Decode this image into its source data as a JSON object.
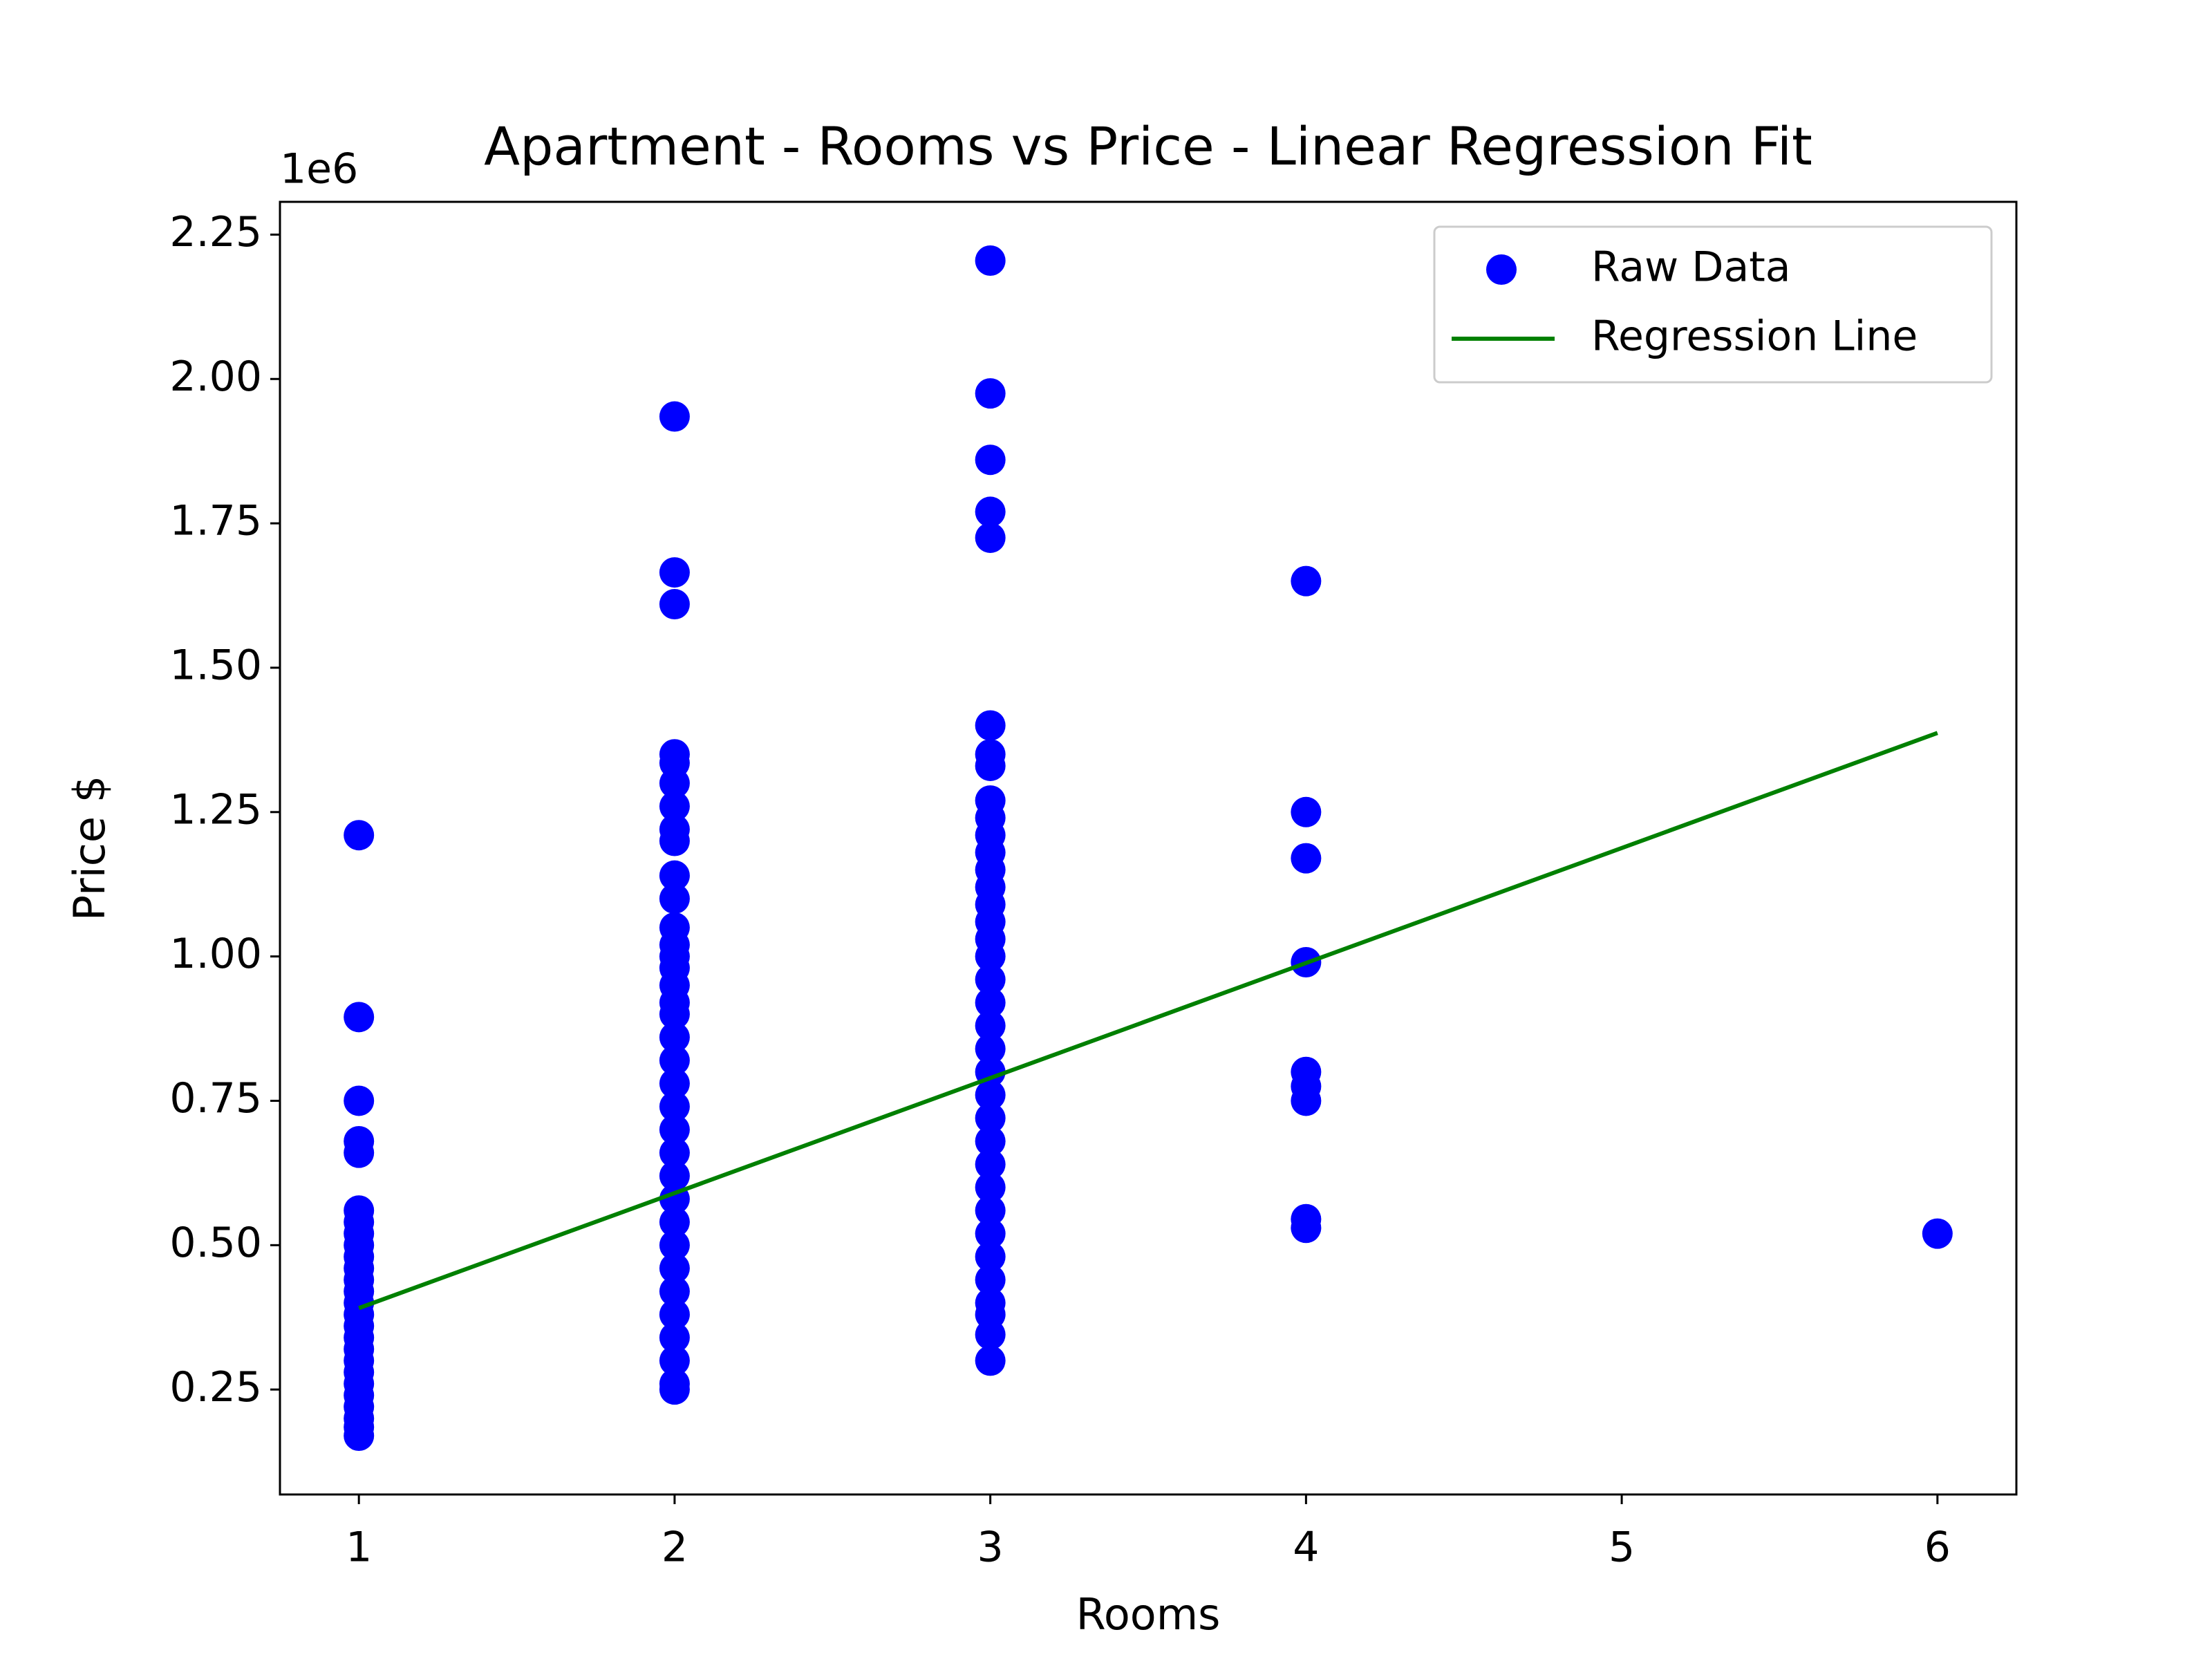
{
  "chart_data": {
    "type": "scatter",
    "title": "Apartment - Rooms vs Price - Linear Regression Fit",
    "x_label": "Rooms",
    "y_label": "Price $",
    "y_offset_label": "1e6",
    "xlim": [
      0.75,
      6.25
    ],
    "ylim": [
      68250,
      2306750
    ],
    "xticks": [
      1,
      2,
      3,
      4,
      5,
      6
    ],
    "yticks": [
      {
        "value": 250000,
        "label": "0.25"
      },
      {
        "value": 500000,
        "label": "0.50"
      },
      {
        "value": 750000,
        "label": "0.75"
      },
      {
        "value": 1000000,
        "label": "1.00"
      },
      {
        "value": 1250000,
        "label": "1.25"
      },
      {
        "value": 1500000,
        "label": "1.50"
      },
      {
        "value": 1750000,
        "label": "1.75"
      },
      {
        "value": 2000000,
        "label": "2.00"
      },
      {
        "value": 2250000,
        "label": "2.25"
      }
    ],
    "grid": false,
    "legend": "upper right",
    "series": [
      {
        "name": "Raw Data",
        "type": "scatter",
        "color": "#0000ff",
        "x": [
          1,
          1,
          1,
          1,
          1,
          1,
          1,
          1,
          1,
          1,
          1,
          1,
          1,
          1,
          1,
          1,
          1,
          1,
          1,
          1,
          1,
          1,
          1,
          1,
          1,
          1,
          2,
          2,
          2,
          2,
          2,
          2,
          2,
          2,
          2,
          2,
          2,
          2,
          2,
          2,
          2,
          2,
          2,
          2,
          2,
          2,
          2,
          2,
          2,
          2,
          2,
          2,
          2,
          2,
          2,
          2,
          2,
          2,
          2,
          2,
          2,
          3,
          3,
          3,
          3,
          3,
          3,
          3,
          3,
          3,
          3,
          3,
          3,
          3,
          3,
          3,
          3,
          3,
          3,
          3,
          3,
          3,
          3,
          3,
          3,
          3,
          3,
          3,
          3,
          3,
          3,
          3,
          3,
          3,
          3,
          3,
          3,
          4,
          4,
          4,
          4,
          4,
          4,
          4,
          4,
          4,
          6
        ],
        "y": [
          1210000,
          895000,
          750000,
          680000,
          660000,
          560000,
          540000,
          520000,
          500000,
          480000,
          460000,
          440000,
          420000,
          400000,
          380000,
          360000,
          340000,
          320000,
          300000,
          280000,
          260000,
          240000,
          220000,
          200000,
          185000,
          170000,
          1935000,
          1665000,
          1610000,
          1350000,
          1335000,
          1300000,
          1260000,
          1220000,
          1200000,
          1140000,
          1100000,
          1050000,
          1020000,
          1000000,
          980000,
          950000,
          920000,
          900000,
          860000,
          820000,
          780000,
          740000,
          700000,
          660000,
          620000,
          580000,
          540000,
          500000,
          460000,
          420000,
          380000,
          340000,
          300000,
          260000,
          250000,
          2205000,
          1975000,
          1860000,
          1770000,
          1725000,
          1400000,
          1350000,
          1330000,
          1270000,
          1240000,
          1210000,
          1180000,
          1150000,
          1120000,
          1090000,
          1060000,
          1030000,
          1000000,
          960000,
          920000,
          880000,
          840000,
          800000,
          760000,
          720000,
          680000,
          640000,
          600000,
          560000,
          520000,
          480000,
          440000,
          400000,
          380000,
          345000,
          300000,
          1650000,
          1250000,
          1170000,
          990000,
          800000,
          775000,
          750000,
          545000,
          530000,
          520000
        ]
      },
      {
        "name": "Regression Line",
        "type": "line",
        "color": "#008000",
        "x": [
          1,
          6
        ],
        "y": [
          391000,
          1387000
        ]
      }
    ]
  }
}
